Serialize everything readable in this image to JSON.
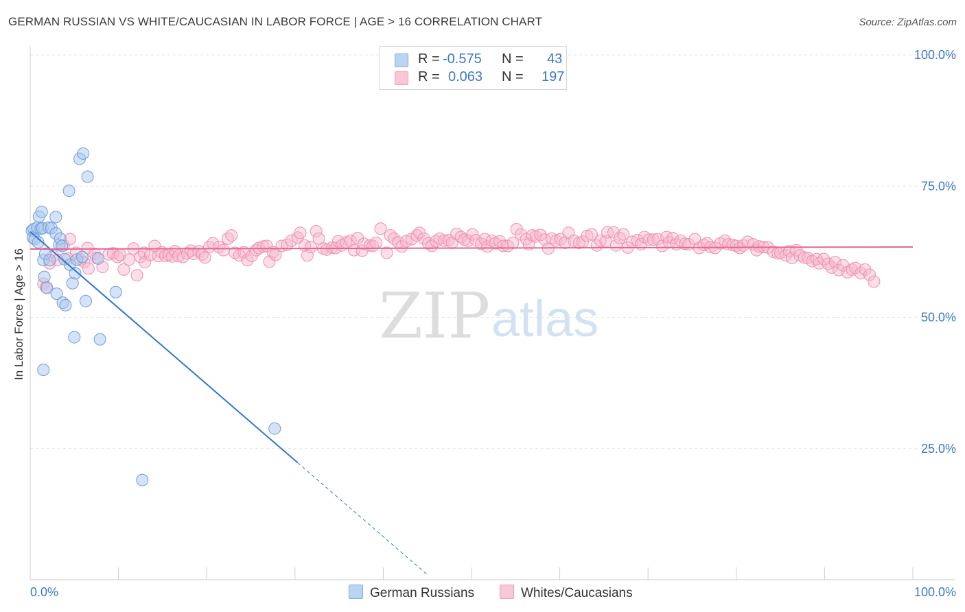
{
  "header": {
    "title": "GERMAN RUSSIAN VS WHITE/CAUCASIAN IN LABOR FORCE | AGE > 16 CORRELATION CHART",
    "source": "Source: ZipAtlas.com"
  },
  "legend": {
    "rows": [
      {
        "r_label": "R =",
        "r_value": "-0.575",
        "n_label": "N =",
        "n_value": "43",
        "color": "#a9c8f0"
      },
      {
        "r_label": "R =",
        "r_value": "0.063",
        "n_label": "N =",
        "n_value": "197",
        "color": "#f7b6cc"
      }
    ]
  },
  "bottom_legend": [
    "German Russians",
    "Whites/Caucasians"
  ],
  "watermark": {
    "zip": "ZIP",
    "atlas": "atlas"
  },
  "chart_data": {
    "type": "scatter",
    "title": "GERMAN RUSSIAN VS WHITE/CAUCASIAN IN LABOR FORCE | AGE > 16 CORRELATION CHART",
    "xlabel": "",
    "ylabel": "In Labor Force | Age > 16",
    "xlim": [
      0,
      100
    ],
    "ylim": [
      0,
      100
    ],
    "x_tick_labels": [
      "0.0%",
      "100.0%"
    ],
    "y_tick_values": [
      25,
      50,
      75,
      100
    ],
    "y_tick_labels": [
      "25.0%",
      "50.0%",
      "75.0%",
      "100.0%"
    ],
    "grid": true,
    "colors": {
      "blue_fill": "#a9c8f0",
      "blue_edge": "#6f9ed8",
      "blue_line": "#2e77d0",
      "pink_fill": "#f7b6cc",
      "pink_edge": "#ee8fb0",
      "pink_line": "#e4668f",
      "axis_text": "#3a78c8"
    },
    "series": [
      {
        "name": "German Russians",
        "color": "#a9c8f0",
        "points": [
          [
            0.2,
            66.5
          ],
          [
            0.3,
            65.2
          ],
          [
            0.4,
            66.8
          ],
          [
            0.5,
            64.9
          ],
          [
            0.8,
            67.1
          ],
          [
            0.9,
            64.3
          ],
          [
            1.0,
            69.2
          ],
          [
            1.2,
            66.9
          ],
          [
            1.3,
            70.1
          ],
          [
            1.4,
            67.0
          ],
          [
            1.5,
            60.9
          ],
          [
            1.6,
            57.7
          ],
          [
            1.7,
            62.1
          ],
          [
            1.9,
            55.6
          ],
          [
            2.1,
            67.1
          ],
          [
            2.2,
            60.9
          ],
          [
            2.4,
            67.0
          ],
          [
            2.9,
            69.1
          ],
          [
            2.9,
            66.0
          ],
          [
            3.0,
            54.5
          ],
          [
            3.3,
            63.8
          ],
          [
            3.4,
            65.0
          ],
          [
            3.6,
            63.6
          ],
          [
            3.7,
            52.8
          ],
          [
            3.9,
            61.1
          ],
          [
            4.0,
            52.3
          ],
          [
            4.4,
            74.1
          ],
          [
            4.5,
            60.0
          ],
          [
            4.8,
            56.5
          ],
          [
            5.0,
            46.2
          ],
          [
            5.1,
            58.4
          ],
          [
            5.3,
            61.0
          ],
          [
            5.6,
            80.2
          ],
          [
            5.9,
            61.5
          ],
          [
            6.0,
            81.2
          ],
          [
            6.3,
            53.1
          ],
          [
            6.5,
            76.8
          ],
          [
            7.7,
            61.2
          ],
          [
            7.9,
            45.8
          ],
          [
            9.7,
            54.8
          ],
          [
            12.7,
            19.0
          ],
          [
            27.7,
            28.8
          ],
          [
            1.5,
            40.0
          ]
        ]
      },
      {
        "name": "Whites/Caucasians",
        "color": "#f7b6cc",
        "points": [
          [
            1.5,
            56.4
          ],
          [
            1.8,
            55.7
          ],
          [
            2.2,
            60.3
          ],
          [
            2.6,
            61.7
          ],
          [
            3.1,
            60.9
          ],
          [
            3.8,
            63.7
          ],
          [
            4.3,
            61.2
          ],
          [
            4.5,
            64.9
          ],
          [
            5.2,
            62.3
          ],
          [
            5.7,
            61.0
          ],
          [
            6.1,
            60.5
          ],
          [
            6.5,
            63.2
          ],
          [
            6.6,
            59.3
          ],
          [
            7.3,
            62.1
          ],
          [
            7.5,
            61.3
          ],
          [
            8.2,
            59.6
          ],
          [
            8.9,
            62.0
          ],
          [
            9.4,
            62.2
          ],
          [
            9.9,
            61.5
          ],
          [
            10.2,
            61.9
          ],
          [
            10.6,
            59.1
          ],
          [
            11.2,
            61.0
          ],
          [
            11.7,
            63.1
          ],
          [
            12.1,
            58.0
          ],
          [
            12.5,
            61.5
          ],
          [
            12.9,
            62.3
          ],
          [
            13.0,
            60.5
          ],
          [
            13.6,
            61.9
          ],
          [
            14.1,
            63.6
          ],
          [
            14.5,
            61.7
          ],
          [
            14.9,
            62.4
          ],
          [
            15.3,
            61.7
          ],
          [
            15.7,
            61.9
          ],
          [
            16.1,
            61.6
          ],
          [
            16.4,
            62.6
          ],
          [
            16.8,
            61.7
          ],
          [
            17.3,
            61.5
          ],
          [
            17.8,
            62.2
          ],
          [
            18.2,
            62.7
          ],
          [
            18.5,
            62.1
          ],
          [
            19.1,
            62.6
          ],
          [
            19.5,
            62.0
          ],
          [
            19.8,
            61.4
          ],
          [
            20.3,
            63.4
          ],
          [
            20.7,
            64.1
          ],
          [
            21.4,
            63.4
          ],
          [
            21.9,
            62.8
          ],
          [
            22.4,
            65.0
          ],
          [
            22.8,
            65.6
          ],
          [
            23.2,
            62.3
          ],
          [
            23.7,
            61.8
          ],
          [
            24.2,
            62.4
          ],
          [
            24.6,
            60.9
          ],
          [
            25.1,
            61.7
          ],
          [
            25.6,
            62.8
          ],
          [
            25.9,
            63.2
          ],
          [
            26.4,
            63.5
          ],
          [
            26.8,
            63.6
          ],
          [
            27.1,
            60.6
          ],
          [
            27.5,
            62.4
          ],
          [
            27.8,
            61.9
          ],
          [
            28.5,
            63.6
          ],
          [
            29.1,
            63.8
          ],
          [
            29.6,
            64.6
          ],
          [
            30.3,
            65.2
          ],
          [
            30.6,
            66.1
          ],
          [
            31.1,
            63.7
          ],
          [
            31.4,
            61.8
          ],
          [
            31.8,
            63.4
          ],
          [
            32.4,
            66.4
          ],
          [
            32.7,
            65.0
          ],
          [
            33.2,
            63.1
          ],
          [
            33.6,
            62.9
          ],
          [
            34.2,
            63.3
          ],
          [
            34.6,
            63.2
          ],
          [
            34.9,
            64.5
          ],
          [
            35.3,
            63.7
          ],
          [
            35.8,
            64.3
          ],
          [
            36.3,
            64.6
          ],
          [
            36.7,
            62.8
          ],
          [
            37.1,
            65.1
          ],
          [
            37.6,
            62.7
          ],
          [
            37.8,
            64.0
          ],
          [
            38.5,
            63.7
          ],
          [
            38.8,
            63.6
          ],
          [
            39.2,
            64.2
          ],
          [
            39.7,
            66.9
          ],
          [
            40.4,
            62.3
          ],
          [
            40.8,
            65.6
          ],
          [
            41.2,
            65.0
          ],
          [
            41.7,
            64.3
          ],
          [
            42.1,
            63.5
          ],
          [
            42.6,
            64.5
          ],
          [
            43.2,
            64.9
          ],
          [
            43.8,
            65.6
          ],
          [
            44.1,
            66.1
          ],
          [
            44.6,
            65.0
          ],
          [
            45.1,
            64.1
          ],
          [
            45.5,
            63.6
          ],
          [
            46.0,
            64.5
          ],
          [
            46.4,
            65.0
          ],
          [
            46.9,
            64.6
          ],
          [
            47.4,
            64.7
          ],
          [
            47.8,
            64.2
          ],
          [
            48.3,
            65.9
          ],
          [
            48.8,
            65.3
          ],
          [
            49.2,
            64.8
          ],
          [
            49.6,
            64.6
          ],
          [
            50.1,
            65.8
          ],
          [
            50.5,
            64.7
          ],
          [
            51.1,
            64.0
          ],
          [
            51.5,
            64.9
          ],
          [
            51.8,
            63.5
          ],
          [
            52.3,
            64.6
          ],
          [
            52.7,
            64.1
          ],
          [
            53.2,
            64.5
          ],
          [
            53.6,
            63.6
          ],
          [
            54.1,
            63.6
          ],
          [
            54.7,
            64.2
          ],
          [
            55.1,
            66.8
          ],
          [
            55.6,
            65.8
          ],
          [
            56.2,
            64.9
          ],
          [
            56.5,
            63.9
          ],
          [
            56.9,
            65.6
          ],
          [
            57.3,
            65.4
          ],
          [
            57.8,
            65.7
          ],
          [
            58.3,
            64.8
          ],
          [
            58.7,
            63.1
          ],
          [
            59.1,
            65.0
          ],
          [
            59.6,
            64.6
          ],
          [
            60.1,
            64.9
          ],
          [
            60.6,
            64.2
          ],
          [
            61.0,
            66.1
          ],
          [
            61.6,
            64.6
          ],
          [
            62.2,
            64.2
          ],
          [
            62.6,
            64.4
          ],
          [
            63.1,
            65.5
          ],
          [
            63.6,
            65.8
          ],
          [
            64.2,
            63.7
          ],
          [
            64.6,
            64.6
          ],
          [
            65.2,
            64.5
          ],
          [
            65.4,
            66.2
          ],
          [
            66.1,
            66.2
          ],
          [
            66.4,
            63.7
          ],
          [
            66.8,
            65.1
          ],
          [
            67.2,
            65.8
          ],
          [
            67.7,
            63.3
          ],
          [
            68.2,
            64.4
          ],
          [
            68.8,
            64.7
          ],
          [
            69.2,
            63.9
          ],
          [
            69.6,
            65.3
          ],
          [
            70.1,
            64.8
          ],
          [
            70.6,
            64.8
          ],
          [
            71.1,
            64.9
          ],
          [
            71.6,
            63.6
          ],
          [
            72.1,
            65.3
          ],
          [
            72.4,
            64.3
          ],
          [
            72.8,
            65.1
          ],
          [
            73.2,
            63.9
          ],
          [
            73.7,
            64.6
          ],
          [
            74.2,
            64.0
          ],
          [
            74.6,
            63.9
          ],
          [
            75.3,
            64.9
          ],
          [
            75.8,
            63.2
          ],
          [
            76.3,
            63.8
          ],
          [
            76.7,
            64.1
          ],
          [
            77.1,
            63.4
          ],
          [
            77.6,
            63.2
          ],
          [
            78.2,
            64.1
          ],
          [
            78.7,
            64.6
          ],
          [
            79.1,
            63.9
          ],
          [
            79.6,
            63.8
          ],
          [
            80.0,
            63.6
          ],
          [
            80.4,
            63.2
          ],
          [
            80.8,
            63.7
          ],
          [
            81.3,
            64.4
          ],
          [
            81.9,
            63.9
          ],
          [
            82.3,
            62.8
          ],
          [
            82.6,
            63.5
          ],
          [
            83.1,
            63.4
          ],
          [
            83.6,
            63.3
          ],
          [
            84.2,
            62.5
          ],
          [
            84.7,
            62.2
          ],
          [
            85.0,
            62.3
          ],
          [
            85.6,
            61.8
          ],
          [
            86.0,
            62.6
          ],
          [
            86.3,
            61.3
          ],
          [
            86.8,
            62.8
          ],
          [
            87.2,
            61.8
          ],
          [
            87.7,
            61.4
          ],
          [
            88.1,
            61.3
          ],
          [
            88.6,
            60.7
          ],
          [
            89.1,
            61.1
          ],
          [
            89.4,
            60.3
          ],
          [
            89.9,
            61.1
          ],
          [
            90.4,
            60.2
          ],
          [
            90.8,
            59.5
          ],
          [
            91.2,
            60.5
          ],
          [
            91.6,
            59.0
          ],
          [
            92.1,
            59.9
          ],
          [
            92.6,
            58.6
          ],
          [
            93.1,
            59.1
          ],
          [
            93.5,
            59.4
          ],
          [
            94.1,
            58.4
          ],
          [
            94.6,
            59.1
          ],
          [
            95.1,
            58.1
          ],
          [
            95.6,
            56.8
          ]
        ]
      }
    ],
    "trend_lines": [
      {
        "series": "German Russians",
        "x0": 0.0,
        "y0": 66.3,
        "x1": 30.3,
        "y1": 22.3,
        "dashed_to_x": 45.0
      },
      {
        "series": "Whites/Caucasians",
        "x0": 0.0,
        "y0": 63.0,
        "x1": 100.0,
        "y1": 63.4
      }
    ]
  }
}
